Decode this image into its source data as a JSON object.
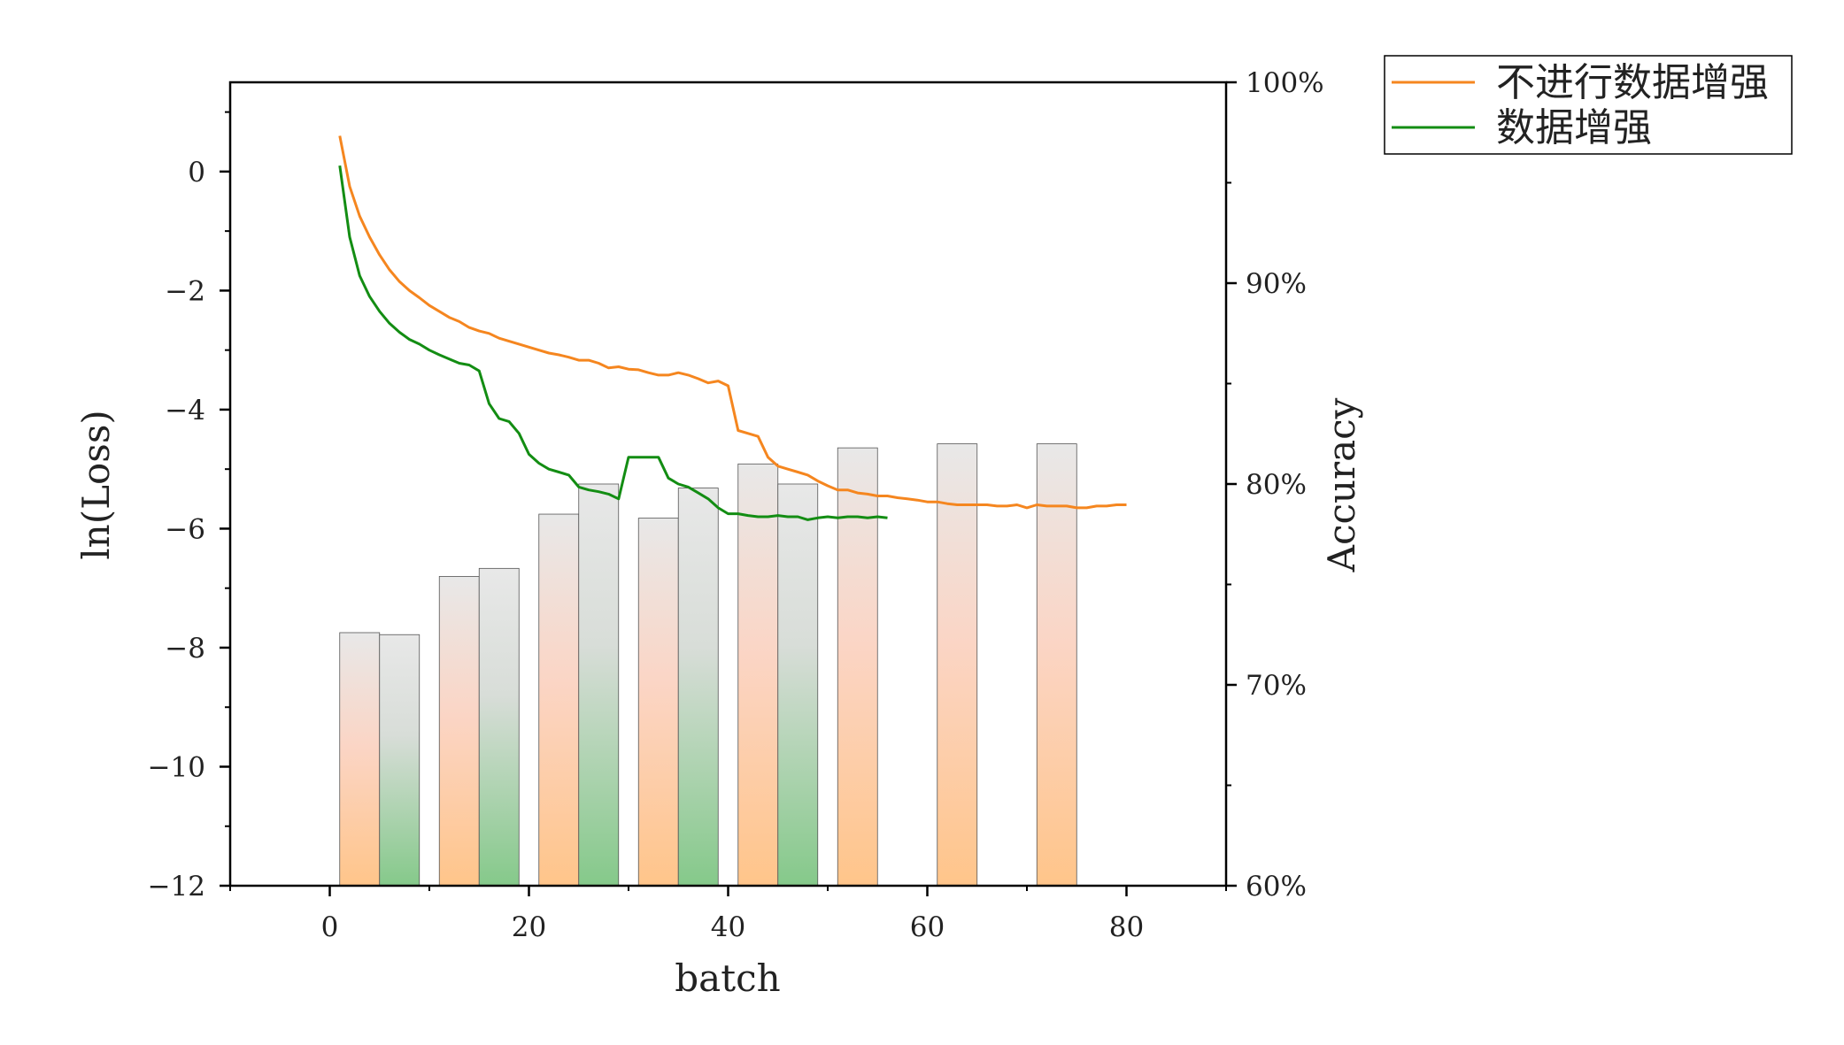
{
  "chart_data": {
    "type": "bar+line",
    "xlabel": "batch",
    "ylabel_left": "ln(Loss)",
    "ylabel_right": "Accuracy",
    "xlim": [
      -10,
      90
    ],
    "xticks": [
      0,
      20,
      40,
      60,
      80
    ],
    "ylim_left": [
      -12,
      1.5
    ],
    "yticks_left": [
      0,
      -2,
      -4,
      -6,
      -8,
      -10,
      -12
    ],
    "ytick_labels_left": [
      "0",
      "−2",
      "−4",
      "−6",
      "−8",
      "−10",
      "−12"
    ],
    "ylim_right": [
      60,
      100
    ],
    "yticks_right": [
      100,
      90,
      80,
      70,
      60
    ],
    "ytick_labels_right": [
      "100%",
      "90%",
      "80%",
      "70%",
      "60%"
    ],
    "grid": false,
    "legend_position": "outside-top-right",
    "colors": {
      "orange": "#f5861f",
      "green": "#138d13",
      "bar_top": "#e8e8e8",
      "bar_orange_bottom": "#ffc58a",
      "bar_green_bottom": "#85c98a"
    },
    "series": [
      {
        "name": "不进行数据增强",
        "color": "#f5861f",
        "x": [
          1,
          2,
          3,
          4,
          5,
          6,
          7,
          8,
          9,
          10,
          11,
          12,
          13,
          14,
          15,
          16,
          17,
          18,
          19,
          20,
          21,
          22,
          23,
          24,
          25,
          26,
          27,
          28,
          29,
          30,
          31,
          32,
          33,
          34,
          35,
          36,
          37,
          38,
          39,
          40,
          41,
          42,
          43,
          44,
          45,
          46,
          47,
          48,
          49,
          50,
          51,
          52,
          53,
          54,
          55,
          56,
          57,
          58,
          59,
          60,
          61,
          62,
          63,
          64,
          65,
          66,
          67,
          68,
          69,
          70,
          71,
          72,
          73,
          74,
          75,
          76,
          77,
          78,
          79,
          80
        ],
        "y": [
          0.6,
          -0.25,
          -0.75,
          -1.1,
          -1.4,
          -1.65,
          -1.85,
          -2.0,
          -2.12,
          -2.25,
          -2.35,
          -2.45,
          -2.52,
          -2.62,
          -2.68,
          -2.72,
          -2.8,
          -2.85,
          -2.9,
          -2.95,
          -3.0,
          -3.05,
          -3.08,
          -3.12,
          -3.17,
          -3.17,
          -3.22,
          -3.3,
          -3.28,
          -3.32,
          -3.33,
          -3.38,
          -3.42,
          -3.42,
          -3.38,
          -3.42,
          -3.48,
          -3.55,
          -3.52,
          -3.6,
          -4.35,
          -4.4,
          -4.45,
          -4.8,
          -4.95,
          -5.0,
          -5.05,
          -5.1,
          -5.2,
          -5.28,
          -5.35,
          -5.35,
          -5.4,
          -5.42,
          -5.45,
          -5.45,
          -5.48,
          -5.5,
          -5.52,
          -5.55,
          -5.55,
          -5.58,
          -5.6,
          -5.6,
          -5.6,
          -5.6,
          -5.62,
          -5.62,
          -5.6,
          -5.65,
          -5.6,
          -5.62,
          -5.62,
          -5.62,
          -5.65,
          -5.65,
          -5.62,
          -5.62,
          -5.6,
          -5.6
        ]
      },
      {
        "name": "数据增强",
        "color": "#138d13",
        "x": [
          1,
          2,
          3,
          4,
          5,
          6,
          7,
          8,
          9,
          10,
          11,
          12,
          13,
          14,
          15,
          16,
          17,
          18,
          19,
          20,
          21,
          22,
          23,
          24,
          25,
          26,
          27,
          28,
          29,
          30,
          31,
          32,
          33,
          34,
          35,
          36,
          37,
          38,
          39,
          40,
          41,
          42,
          43,
          44,
          45,
          46,
          47,
          48,
          49,
          50,
          51,
          52,
          53,
          54,
          55,
          56
        ],
        "y": [
          0.1,
          -1.1,
          -1.75,
          -2.1,
          -2.35,
          -2.55,
          -2.7,
          -2.82,
          -2.9,
          -3.0,
          -3.08,
          -3.15,
          -3.22,
          -3.25,
          -3.35,
          -3.9,
          -4.15,
          -4.2,
          -4.4,
          -4.75,
          -4.9,
          -5.0,
          -5.05,
          -5.1,
          -5.3,
          -5.35,
          -5.38,
          -5.42,
          -5.5,
          -4.8,
          -4.8,
          -4.8,
          -4.8,
          -5.15,
          -5.25,
          -5.3,
          -5.4,
          -5.5,
          -5.65,
          -5.75,
          -5.75,
          -5.78,
          -5.8,
          -5.8,
          -5.78,
          -5.8,
          -5.8,
          -5.85,
          -5.82,
          -5.8,
          -5.82,
          -5.8,
          -5.8,
          -5.82,
          -5.8,
          -5.82
        ]
      }
    ],
    "bars": {
      "axis": "right",
      "width": 4,
      "items": [
        {
          "x": 3,
          "value": 72.6,
          "color": "orange"
        },
        {
          "x": 7,
          "value": 72.5,
          "color": "green"
        },
        {
          "x": 13,
          "value": 75.4,
          "color": "orange"
        },
        {
          "x": 17,
          "value": 75.8,
          "color": "green"
        },
        {
          "x": 23,
          "value": 78.5,
          "color": "orange"
        },
        {
          "x": 27,
          "value": 80.0,
          "color": "green"
        },
        {
          "x": 33,
          "value": 78.3,
          "color": "orange"
        },
        {
          "x": 37,
          "value": 79.8,
          "color": "green"
        },
        {
          "x": 43,
          "value": 81.0,
          "color": "orange"
        },
        {
          "x": 47,
          "value": 80.0,
          "color": "green"
        },
        {
          "x": 53,
          "value": 81.8,
          "color": "orange"
        },
        {
          "x": 63,
          "value": 82.0,
          "color": "orange"
        },
        {
          "x": 73,
          "value": 82.0,
          "color": "orange"
        }
      ]
    }
  }
}
